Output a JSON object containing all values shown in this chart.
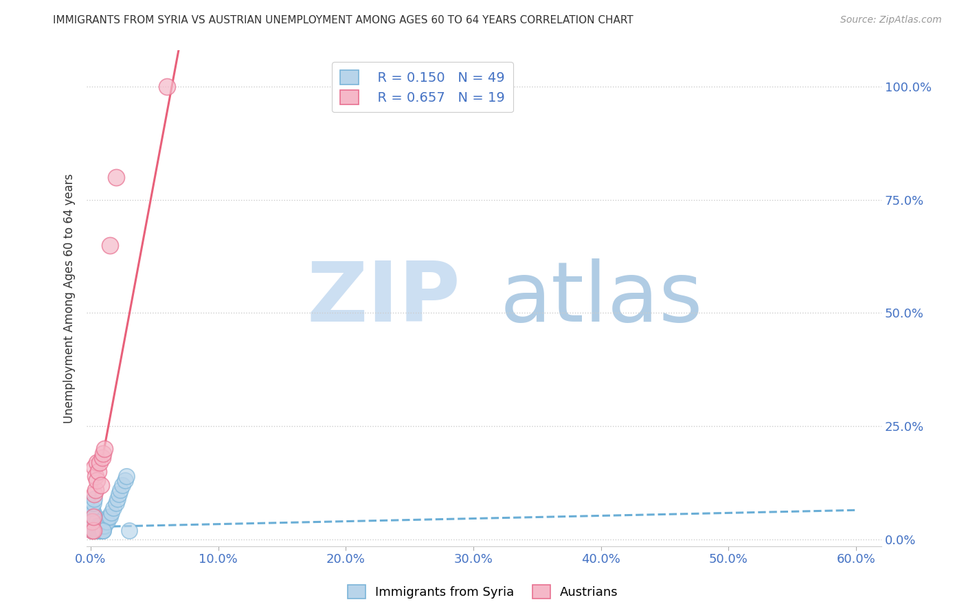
{
  "title": "IMMIGRANTS FROM SYRIA VS AUSTRIAN UNEMPLOYMENT AMONG AGES 60 TO 64 YEARS CORRELATION CHART",
  "source": "Source: ZipAtlas.com",
  "ylabel_left": "Unemployment Among Ages 60 to 64 years",
  "x_tick_labels": [
    "0.0%",
    "10.0%",
    "20.0%",
    "30.0%",
    "40.0%",
    "50.0%",
    "60.0%"
  ],
  "x_tick_values": [
    0.0,
    0.1,
    0.2,
    0.3,
    0.4,
    0.5,
    0.6
  ],
  "y_tick_labels_right": [
    "0.0%",
    "25.0%",
    "50.0%",
    "75.0%",
    "100.0%"
  ],
  "y_tick_values": [
    0.0,
    0.25,
    0.5,
    0.75,
    1.0
  ],
  "xlim": [
    -0.003,
    0.62
  ],
  "ylim": [
    -0.015,
    1.08
  ],
  "legend_R_syria": "0.150",
  "legend_N_syria": "49",
  "legend_R_austrians": "0.657",
  "legend_N_austrians": "19",
  "color_syria_fill": "#b8d4ea",
  "color_syria_edge": "#7ab4d8",
  "color_syria_line": "#6aaed6",
  "color_austrians_fill": "#f5b8c8",
  "color_austrians_edge": "#e87090",
  "color_austrians_line": "#e8607a",
  "color_blue_text": "#4472c4",
  "watermark_zip": "ZIP",
  "watermark_atlas": "atlas",
  "background_color": "#ffffff",
  "grid_color": "#cccccc",
  "syria_scatter_x": [
    0.001,
    0.001,
    0.001,
    0.001,
    0.001,
    0.002,
    0.002,
    0.002,
    0.002,
    0.002,
    0.003,
    0.003,
    0.003,
    0.003,
    0.004,
    0.004,
    0.004,
    0.004,
    0.005,
    0.005,
    0.005,
    0.006,
    0.006,
    0.007,
    0.007,
    0.008,
    0.008,
    0.009,
    0.01,
    0.01,
    0.011,
    0.012,
    0.013,
    0.014,
    0.015,
    0.016,
    0.018,
    0.02,
    0.021,
    0.022,
    0.023,
    0.025,
    0.027,
    0.028,
    0.03,
    0.001,
    0.002,
    0.003,
    0.01
  ],
  "syria_scatter_y": [
    0.02,
    0.03,
    0.04,
    0.05,
    0.06,
    0.02,
    0.03,
    0.04,
    0.05,
    0.06,
    0.02,
    0.03,
    0.04,
    0.05,
    0.02,
    0.03,
    0.04,
    0.05,
    0.02,
    0.03,
    0.04,
    0.02,
    0.03,
    0.02,
    0.03,
    0.02,
    0.03,
    0.02,
    0.02,
    0.03,
    0.03,
    0.04,
    0.04,
    0.05,
    0.05,
    0.06,
    0.07,
    0.08,
    0.09,
    0.1,
    0.11,
    0.12,
    0.13,
    0.14,
    0.02,
    0.07,
    0.08,
    0.09,
    0.02
  ],
  "austrians_scatter_x": [
    0.001,
    0.001,
    0.002,
    0.002,
    0.003,
    0.003,
    0.004,
    0.004,
    0.005,
    0.005,
    0.006,
    0.007,
    0.008,
    0.009,
    0.01,
    0.011,
    0.015,
    0.02,
    0.06
  ],
  "austrians_scatter_y": [
    0.02,
    0.04,
    0.02,
    0.05,
    0.1,
    0.16,
    0.11,
    0.14,
    0.13,
    0.17,
    0.15,
    0.17,
    0.12,
    0.18,
    0.19,
    0.2,
    0.65,
    0.8,
    1.0
  ],
  "syria_line_x": [
    0.0,
    0.6
  ],
  "syria_line_y": [
    0.028,
    0.065
  ],
  "austrians_line_x": [
    0.0,
    0.065
  ],
  "austrians_line_y": [
    0.04,
    1.02
  ],
  "bottom_legend_labels": [
    "Immigrants from Syria",
    "Austrians"
  ]
}
